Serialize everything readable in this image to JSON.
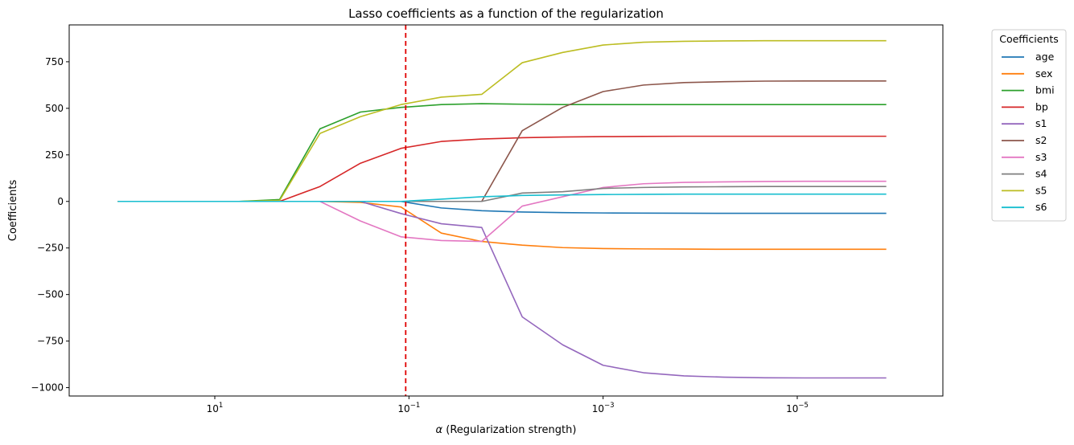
{
  "chart_data": {
    "type": "line",
    "title": "Lasso coefficients as a function of the regularization",
    "xlabel_symbol": "α",
    "xlabel_text": " (Regularization strength)",
    "ylabel": "Coefficients",
    "x_scale": "log",
    "x_reversed": true,
    "xlim": [
      316.2,
      3.1623e-07
    ],
    "ylim": [
      -1045,
      948
    ],
    "x_ticks": [
      {
        "value": 10,
        "base": "10",
        "exp": "1"
      },
      {
        "value": 0.1,
        "base": "10",
        "exp": "−1"
      },
      {
        "value": 0.001,
        "base": "10",
        "exp": "−3"
      },
      {
        "value": 1e-05,
        "base": "10",
        "exp": "−5"
      }
    ],
    "y_ticks": [
      {
        "value": 750,
        "label": "750"
      },
      {
        "value": 500,
        "label": "500"
      },
      {
        "value": 250,
        "label": "250"
      },
      {
        "value": 0,
        "label": "0"
      },
      {
        "value": -250,
        "label": "−250"
      },
      {
        "value": -500,
        "label": "−500"
      },
      {
        "value": -750,
        "label": "−750"
      },
      {
        "value": -1000,
        "label": "−1000"
      }
    ],
    "x": [
      100,
      38.3,
      14.7,
      5.62,
      2.15,
      0.825,
      0.316,
      0.121,
      0.0464,
      0.0178,
      0.00681,
      0.00261,
      0.001,
      0.000383,
      0.000147,
      5.62e-05,
      2.15e-05,
      8.25e-06,
      3.16e-06,
      1.21e-06
    ],
    "alpha_line": {
      "x": 0.108,
      "color": "#e00000",
      "style": "dashed"
    },
    "legend": {
      "title": "Coefficients",
      "placement": "outside-right-top"
    },
    "series": [
      {
        "name": "age",
        "color": "#1f77b4",
        "values": [
          0,
          0,
          0,
          0,
          0,
          0,
          0,
          0,
          -35,
          -50,
          -57,
          -60,
          -62,
          -63,
          -63.5,
          -64,
          -64,
          -64,
          -64,
          -64
        ]
      },
      {
        "name": "sex",
        "color": "#ff7f0e",
        "values": [
          0,
          0,
          0,
          0,
          0,
          0,
          -5,
          -30,
          -170,
          -215,
          -235,
          -248,
          -253,
          -255,
          -256,
          -257,
          -257,
          -257,
          -257,
          -257
        ]
      },
      {
        "name": "bmi",
        "color": "#2ca02c",
        "values": [
          0,
          0,
          0,
          0,
          10,
          390,
          480,
          505,
          520,
          525,
          522,
          520,
          520,
          520,
          520,
          520,
          520,
          520,
          520,
          520
        ]
      },
      {
        "name": "bp",
        "color": "#d62728",
        "values": [
          0,
          0,
          0,
          0,
          0,
          80,
          205,
          285,
          322,
          335,
          342,
          346,
          348,
          349,
          350,
          350,
          350,
          350,
          350,
          350
        ]
      },
      {
        "name": "s1",
        "color": "#9467bd",
        "values": [
          0,
          0,
          0,
          0,
          0,
          0,
          0,
          -65,
          -120,
          -140,
          -620,
          -770,
          -880,
          -920,
          -937,
          -944,
          -947,
          -948,
          -948,
          -948
        ]
      },
      {
        "name": "s2",
        "color": "#8c564b",
        "values": [
          0,
          0,
          0,
          0,
          0,
          0,
          0,
          0,
          0,
          0,
          380,
          505,
          590,
          625,
          638,
          643,
          646,
          647,
          647,
          647
        ]
      },
      {
        "name": "s3",
        "color": "#e377c2",
        "values": [
          0,
          0,
          0,
          0,
          0,
          0,
          -105,
          -190,
          -210,
          -215,
          -25,
          25,
          75,
          95,
          102,
          105,
          107,
          108,
          108,
          108
        ]
      },
      {
        "name": "s4",
        "color": "#7f7f7f",
        "values": [
          0,
          0,
          0,
          0,
          0,
          0,
          0,
          0,
          0,
          0,
          45,
          52,
          70,
          75,
          78,
          79,
          80,
          80,
          80,
          80
        ]
      },
      {
        "name": "s5",
        "color": "#bcbd22",
        "values": [
          0,
          0,
          0,
          0,
          5,
          365,
          455,
          520,
          560,
          575,
          745,
          800,
          840,
          855,
          860,
          862,
          863,
          863,
          863,
          863
        ]
      },
      {
        "name": "s6",
        "color": "#17becf",
        "values": [
          0,
          0,
          0,
          0,
          0,
          0,
          0,
          0,
          12,
          25,
          32,
          35,
          37,
          38,
          39,
          39,
          39,
          39,
          39,
          39
        ]
      }
    ]
  }
}
